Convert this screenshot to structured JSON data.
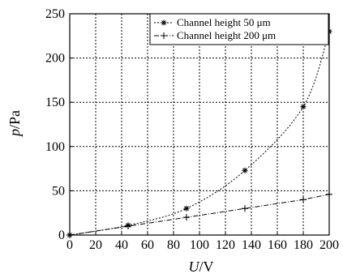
{
  "chart_data": {
    "type": "line",
    "xlabel_italic": "U",
    "xlabel_unit": "/V",
    "ylabel_italic": "p",
    "ylabel_unit": "/Pa",
    "xlim": [
      0,
      200
    ],
    "ylim": [
      0,
      250
    ],
    "x_ticks": [
      "0",
      "20",
      "40",
      "60",
      "80",
      "100",
      "120",
      "140",
      "160",
      "180",
      "200"
    ],
    "y_ticks": [
      "0",
      "50",
      "100",
      "150",
      "200",
      "250"
    ],
    "grid": true,
    "legend_position": "top-right",
    "series": [
      {
        "name": "Channel height 50 μm",
        "line_style": "dotted",
        "marker": "star",
        "x": [
          0,
          45,
          90,
          135,
          180,
          200
        ],
        "y": [
          0,
          11,
          30,
          73,
          145,
          230
        ]
      },
      {
        "name": "Channel height 200 μm",
        "line_style": "dash-dot",
        "marker": "plus",
        "x": [
          0,
          45,
          90,
          135,
          180,
          200
        ],
        "y": [
          0,
          10,
          20,
          30,
          40,
          46
        ]
      }
    ]
  }
}
